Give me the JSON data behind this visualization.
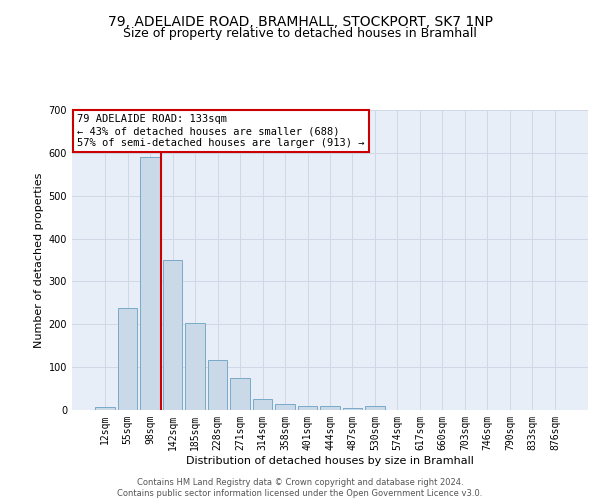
{
  "title_line1": "79, ADELAIDE ROAD, BRAMHALL, STOCKPORT, SK7 1NP",
  "title_line2": "Size of property relative to detached houses in Bramhall",
  "xlabel": "Distribution of detached houses by size in Bramhall",
  "ylabel": "Number of detached properties",
  "categories": [
    "12sqm",
    "55sqm",
    "98sqm",
    "142sqm",
    "185sqm",
    "228sqm",
    "271sqm",
    "314sqm",
    "358sqm",
    "401sqm",
    "444sqm",
    "487sqm",
    "530sqm",
    "574sqm",
    "617sqm",
    "660sqm",
    "703sqm",
    "746sqm",
    "790sqm",
    "833sqm",
    "876sqm"
  ],
  "bar_values": [
    8,
    237,
    590,
    350,
    203,
    117,
    74,
    25,
    15,
    9,
    9,
    5,
    9,
    0,
    0,
    0,
    0,
    0,
    0,
    0,
    0
  ],
  "bar_color": "#c9d9e8",
  "bar_edge_color": "#7aaac8",
  "vline_color": "#cc0000",
  "vline_x_index": 2.5,
  "annotation_text": "79 ADELAIDE ROAD: 133sqm\n← 43% of detached houses are smaller (688)\n57% of semi-detached houses are larger (913) →",
  "annotation_box_color": "#ffffff",
  "annotation_box_edge": "#cc0000",
  "ylim": [
    0,
    700
  ],
  "yticks": [
    0,
    100,
    200,
    300,
    400,
    500,
    600,
    700
  ],
  "grid_color": "#d0d8e8",
  "bg_color": "#e8eef8",
  "footnote": "Contains HM Land Registry data © Crown copyright and database right 2024.\nContains public sector information licensed under the Open Government Licence v3.0.",
  "title1_fontsize": 10,
  "title2_fontsize": 9,
  "xlabel_fontsize": 8,
  "ylabel_fontsize": 8,
  "tick_fontsize": 7,
  "footnote_fontsize": 6,
  "annotation_fontsize": 7.5
}
